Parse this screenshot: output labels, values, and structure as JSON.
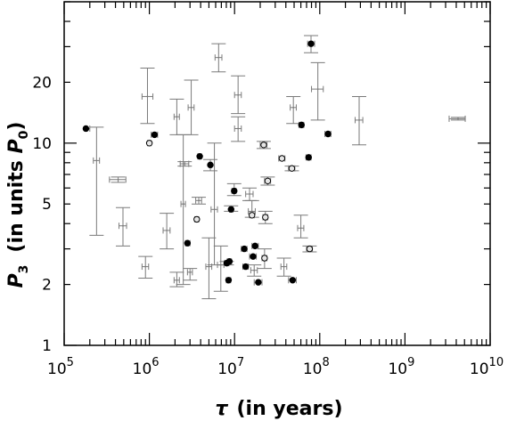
{
  "chart_data": {
    "type": "scatter",
    "xlabel": {
      "greek": "τ",
      "text": "(in years)"
    },
    "ylabel": {
      "main": "P",
      "sub": "3",
      "text": "(in units ",
      "unit": "P",
      "unit_sub": "0",
      "close": ")"
    },
    "x_scale": "log",
    "y_scale": "log",
    "xlim": [
      100000,
      10000000000
    ],
    "ylim": [
      1,
      50
    ],
    "x_ticks": [
      {
        "value": 100000,
        "base": "10",
        "exp": "5"
      },
      {
        "value": 1000000,
        "base": "10",
        "exp": "6"
      },
      {
        "value": 10000000,
        "base": "10",
        "exp": "7"
      },
      {
        "value": 100000000,
        "base": "10",
        "exp": "8"
      },
      {
        "value": 1000000000,
        "base": "10",
        "exp": "9"
      },
      {
        "value": 10000000000,
        "base": "10",
        "exp": "10"
      }
    ],
    "y_ticks": [
      {
        "value": 1,
        "label": "1"
      },
      {
        "value": 2,
        "label": "2"
      },
      {
        "value": 5,
        "label": "5"
      },
      {
        "value": 10,
        "label": "10"
      },
      {
        "value": 20,
        "label": "20"
      }
    ],
    "grid": false,
    "legend": "none",
    "series": [
      {
        "marker": "filled-circle",
        "points": [
          {
            "x": 180000,
            "y": 11.8,
            "x_err": [
              180000,
              200000
            ],
            "y_err": [
              11.8,
              11.8
            ]
          },
          {
            "x": 1150000,
            "y": 11.0,
            "x_err": [
              1050000,
              1250000
            ],
            "y_err": [
              11.0,
              11.0
            ]
          },
          {
            "x": 3900000,
            "y": 8.6,
            "x_err": [
              3700000,
              4100000
            ],
            "y_err": [
              8.6,
              8.6
            ]
          },
          {
            "x": 5200000,
            "y": 7.8,
            "x_err": [
              5000000,
              5400000
            ],
            "y_err": [
              7.3,
              8.3
            ]
          },
          {
            "x": 9900000,
            "y": 5.8,
            "x_err": [
              9300000,
              10400000
            ],
            "y_err": [
              5.5,
              6.3
            ]
          },
          {
            "x": 9100000,
            "y": 4.7,
            "x_err": [
              8700000,
              9600000
            ],
            "y_err": [
              4.6,
              4.9
            ]
          },
          {
            "x": 2800000,
            "y": 3.2,
            "x_err": [
              2650000,
              3000000
            ],
            "y_err": [
              3.2,
              3.2
            ]
          },
          {
            "x": 13000000,
            "y": 3.0,
            "x_err": [
              12000000,
              14000000
            ],
            "y_err": [
              3.0,
              3.0
            ]
          },
          {
            "x": 17400000,
            "y": 3.1,
            "x_err": [
              16000000,
              19000000
            ],
            "y_err": [
              3.1,
              3.1
            ]
          },
          {
            "x": 8100000,
            "y": 2.55,
            "x_err": [
              7600000,
              8600000
            ],
            "y_err": [
              2.5,
              2.6
            ]
          },
          {
            "x": 8700000,
            "y": 2.6,
            "x_err": [
              8200000,
              9200000
            ],
            "y_err": [
              2.6,
              2.6
            ]
          },
          {
            "x": 16500000,
            "y": 2.75,
            "x_err": [
              15000000,
              18000000
            ],
            "y_err": [
              2.75,
              2.75
            ]
          },
          {
            "x": 13500000,
            "y": 2.45,
            "x_err": [
              12500000,
              14500000
            ],
            "y_err": [
              2.45,
              2.45
            ]
          },
          {
            "x": 8500000,
            "y": 2.1,
            "x_err": [
              8000000,
              9000000
            ],
            "y_err": [
              2.1,
              2.1
            ]
          },
          {
            "x": 19000000,
            "y": 2.05,
            "x_err": [
              17000000,
              21000000
            ],
            "y_err": [
              2.05,
              2.05
            ]
          },
          {
            "x": 48000000,
            "y": 2.1,
            "x_err": [
              43000000,
              53000000
            ],
            "y_err": [
              2.1,
              2.1
            ]
          },
          {
            "x": 61000000,
            "y": 12.3,
            "x_err": [
              57000000,
              65000000
            ],
            "y_err": [
              12.3,
              12.3
            ]
          },
          {
            "x": 74000000,
            "y": 8.5,
            "x_err": [
              69000000,
              79000000
            ],
            "y_err": [
              8.5,
              8.5
            ]
          },
          {
            "x": 125000000,
            "y": 11.1,
            "x_err": [
              115000000,
              135000000
            ],
            "y_err": [
              11.1,
              11.1
            ]
          },
          {
            "x": 79000000,
            "y": 31.0,
            "x_err": [
              72000000,
              87000000
            ],
            "y_err": [
              28.0,
              34.0
            ]
          }
        ]
      },
      {
        "marker": "open-circle",
        "points": [
          {
            "x": 1000000,
            "y": 10.0,
            "x_err": [
              950000,
              1050000
            ],
            "y_err": [
              10.0,
              10.0
            ]
          },
          {
            "x": 3600000,
            "y": 4.2,
            "x_err": [
              3400000,
              3800000
            ],
            "y_err": [
              4.2,
              4.2
            ]
          },
          {
            "x": 22000000,
            "y": 9.8,
            "x_err": [
              20000000,
              24000000
            ],
            "y_err": [
              9.4,
              10.2
            ]
          },
          {
            "x": 24500000,
            "y": 6.5,
            "x_err": [
              22500000,
              26500000
            ],
            "y_err": [
              6.2,
              6.8
            ]
          },
          {
            "x": 16000000,
            "y": 4.4,
            "x_err": [
              15000000,
              17000000
            ],
            "y_err": [
              4.4,
              4.4
            ]
          },
          {
            "x": 23000000,
            "y": 4.3,
            "x_err": [
              21500000,
              24500000
            ],
            "y_err": [
              4.0,
              4.6
            ]
          },
          {
            "x": 22500000,
            "y": 2.7,
            "x_err": [
              21000000,
              24000000
            ],
            "y_err": [
              2.4,
              3.0
            ]
          },
          {
            "x": 36000000,
            "y": 8.4,
            "x_err": [
              33000000,
              39000000
            ],
            "y_err": [
              8.4,
              8.4
            ]
          },
          {
            "x": 47000000,
            "y": 7.5,
            "x_err": [
              43000000,
              51000000
            ],
            "y_err": [
              7.3,
              7.7
            ]
          },
          {
            "x": 76000000,
            "y": 3.0,
            "x_err": [
              70000000,
              82000000
            ],
            "y_err": [
              2.9,
              3.1
            ]
          }
        ]
      },
      {
        "marker": "error-bar-only",
        "points": [
          {
            "x": 240000,
            "y": 8.2,
            "x_err": [
              220000,
              260000
            ],
            "y_err": [
              3.5,
              12.0
            ]
          },
          {
            "x": 430000,
            "y": 6.6,
            "x_err": [
              340000,
              530000
            ],
            "y_err": [
              6.4,
              6.8
            ]
          },
          {
            "x": 490000,
            "y": 3.9,
            "x_err": [
              440000,
              540000
            ],
            "y_err": [
              3.1,
              4.8
            ]
          },
          {
            "x": 950000,
            "y": 17.0,
            "x_err": [
              820000,
              1100000
            ],
            "y_err": [
              12.5,
              23.5
            ]
          },
          {
            "x": 900000,
            "y": 2.45,
            "x_err": [
              820000,
              980000
            ],
            "y_err": [
              2.15,
              2.75
            ]
          },
          {
            "x": 1600000,
            "y": 3.7,
            "x_err": [
              1450000,
              1750000
            ],
            "y_err": [
              3.0,
              4.5
            ]
          },
          {
            "x": 2100000,
            "y": 13.5,
            "x_err": [
              1950000,
              2250000
            ],
            "y_err": [
              11.0,
              16.5
            ]
          },
          {
            "x": 2100000,
            "y": 2.1,
            "x_err": [
              1950000,
              2250000
            ],
            "y_err": [
              1.95,
              2.3
            ]
          },
          {
            "x": 2500000,
            "y": 5.0,
            "x_err": [
              2350000,
              2650000
            ],
            "y_err": [
              2.0,
              11.0
            ]
          },
          {
            "x": 2600000,
            "y": 7.9,
            "x_err": [
              2300000,
              2900000
            ],
            "y_err": [
              7.7,
              8.1
            ]
          },
          {
            "x": 3000000,
            "y": 2.3,
            "x_err": [
              2800000,
              3200000
            ],
            "y_err": [
              2.1,
              2.4
            ]
          },
          {
            "x": 3100000,
            "y": 15.0,
            "x_err": [
              2850000,
              3350000
            ],
            "y_err": [
              11.0,
              20.5
            ]
          },
          {
            "x": 3800000,
            "y": 5.2,
            "x_err": [
              3500000,
              4100000
            ],
            "y_err": [
              5.0,
              5.4
            ]
          },
          {
            "x": 5000000,
            "y": 2.45,
            "x_err": [
              4600000,
              5400000
            ],
            "y_err": [
              1.7,
              3.4
            ]
          },
          {
            "x": 6500000,
            "y": 26.5,
            "x_err": [
              5900000,
              7100000
            ],
            "y_err": [
              22.5,
              31.0
            ]
          },
          {
            "x": 5800000,
            "y": 4.7,
            "x_err": [
              5300000,
              6300000
            ],
            "y_err": [
              2.5,
              10.0
            ]
          },
          {
            "x": 6900000,
            "y": 2.5,
            "x_err": [
              6300000,
              7500000
            ],
            "y_err": [
              1.85,
              3.1
            ]
          },
          {
            "x": 11000000,
            "y": 17.3,
            "x_err": [
              10000000,
              12000000
            ],
            "y_err": [
              14.0,
              21.5
            ]
          },
          {
            "x": 11000000,
            "y": 11.8,
            "x_err": [
              10000000,
              12000000
            ],
            "y_err": [
              10.2,
              13.5
            ]
          },
          {
            "x": 15000000,
            "y": 5.6,
            "x_err": [
              13500000,
              16500000
            ],
            "y_err": [
              5.2,
              6.0
            ]
          },
          {
            "x": 16000000,
            "y": 4.6,
            "x_err": [
              14500000,
              17500000
            ],
            "y_err": [
              4.3,
              5.2
            ]
          },
          {
            "x": 17000000,
            "y": 2.35,
            "x_err": [
              15500000,
              18500000
            ],
            "y_err": [
              2.2,
              2.5
            ]
          },
          {
            "x": 38000000,
            "y": 2.45,
            "x_err": [
              35000000,
              41000000
            ],
            "y_err": [
              2.2,
              2.7
            ]
          },
          {
            "x": 49000000,
            "y": 15.0,
            "x_err": [
              45000000,
              53000000
            ],
            "y_err": [
              12.5,
              17.0
            ]
          },
          {
            "x": 60000000,
            "y": 3.8,
            "x_err": [
              55000000,
              65000000
            ],
            "y_err": [
              3.4,
              4.4
            ]
          },
          {
            "x": 95000000,
            "y": 18.5,
            "x_err": [
              80000000,
              110000000
            ],
            "y_err": [
              13.0,
              25.0
            ]
          },
          {
            "x": 290000000,
            "y": 13.0,
            "x_err": [
              260000000,
              320000000
            ],
            "y_err": [
              9.8,
              17.0
            ]
          },
          {
            "x": 4200000000,
            "y": 13.2,
            "x_err": [
              3300000000,
              5100000000
            ],
            "y_err": [
              13.0,
              13.4
            ]
          }
        ]
      }
    ]
  }
}
